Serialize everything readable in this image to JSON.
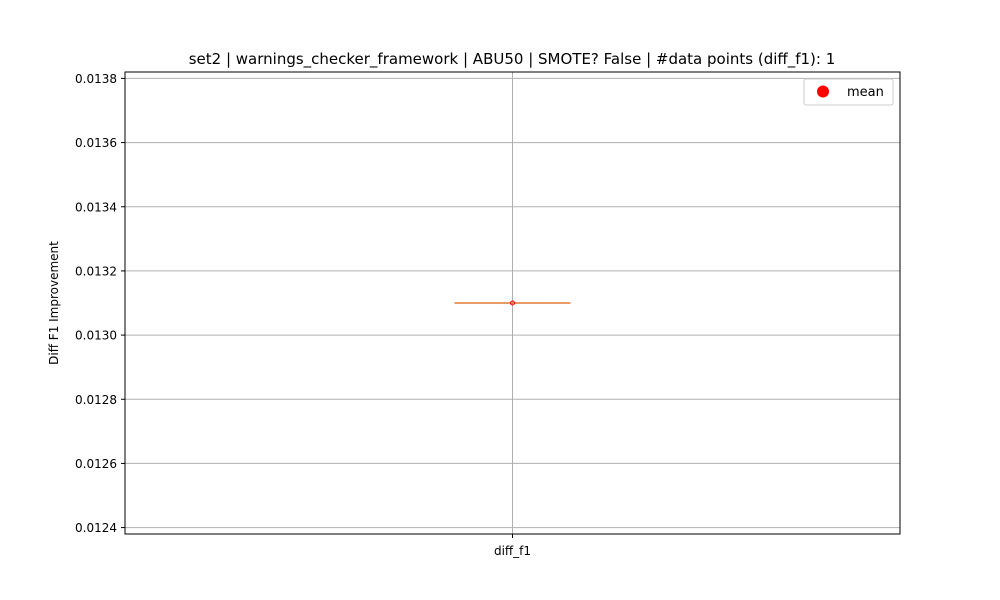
{
  "chart_data": {
    "type": "box",
    "title": "set2 | warnings_checker_framework | ABU50 | SMOTE? False | #data points (diff_f1): 1",
    "xlabel": "",
    "ylabel": "Diff F1 Improvement",
    "categories": [
      "diff_f1"
    ],
    "series": [
      {
        "category": "diff_f1",
        "values": [
          0.0131
        ],
        "min": 0.0131,
        "q1": 0.0131,
        "median": 0.0131,
        "q3": 0.0131,
        "max": 0.0131,
        "mean": 0.0131
      }
    ],
    "ylim": [
      0.01238,
      0.01382
    ],
    "yticks": [
      0.0124,
      0.0126,
      0.0128,
      0.013,
      0.0132,
      0.0134,
      0.0136,
      0.0138
    ],
    "ytick_labels": [
      "0.0124",
      "0.0126",
      "0.0128",
      "0.0130",
      "0.0132",
      "0.0134",
      "0.0136",
      "0.0138"
    ],
    "grid": true,
    "legend": {
      "placement": "top-right",
      "entries": [
        {
          "label": "mean",
          "marker": "circle",
          "color": "#ff0000"
        }
      ]
    },
    "colors": {
      "median": "#e07b39",
      "box": "#000000",
      "mean": "#ff0000",
      "grid": "#b0b0b0"
    }
  }
}
